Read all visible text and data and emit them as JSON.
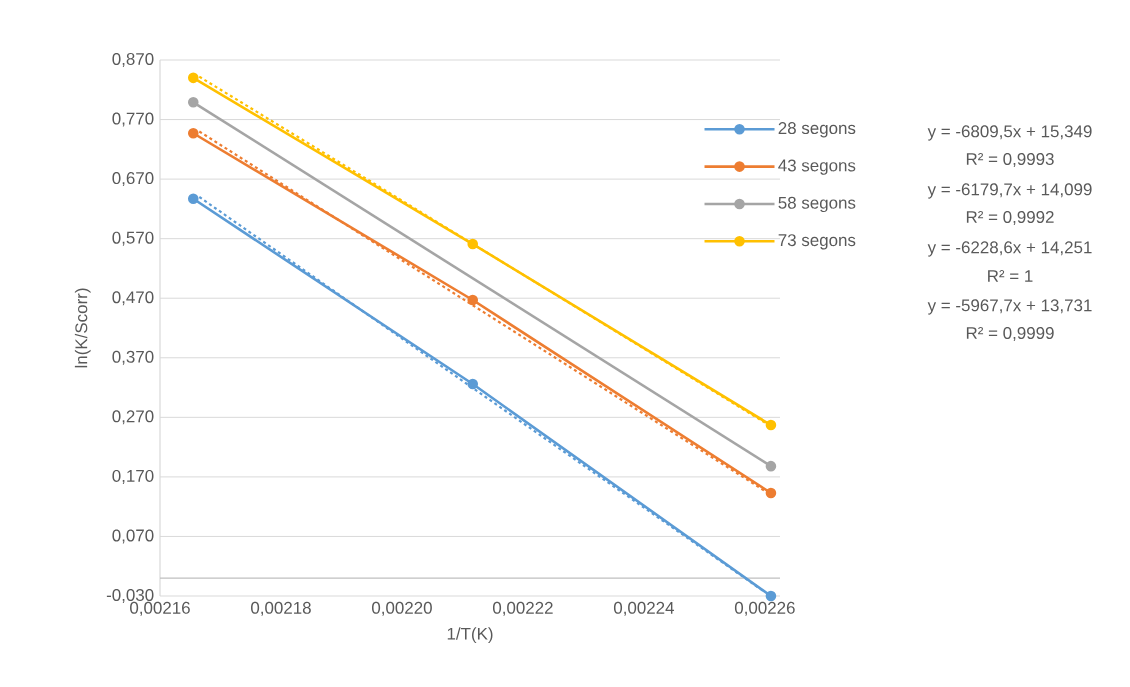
{
  "chart_data": {
    "type": "line",
    "xlabel": "1/T(K)",
    "ylabel": "ln(K/Scorr)",
    "x": [
      0.0021655,
      0.0022117,
      0.002261
    ],
    "series": [
      {
        "type": "line",
        "color": "#5b9bd5",
        "line_style": "dotted",
        "marker": "none",
        "x": [
          0.0021665,
          0.0022598
        ],
        "values": [
          0.64,
          -0.022
        ]
      },
      {
        "type": "line",
        "color": "#ed7d31",
        "line_style": "dotted",
        "marker": "none",
        "x": [
          0.0021665,
          0.002261
        ],
        "values": [
          0.75,
          0.14
        ]
      },
      {
        "type": "line",
        "color": "#ffc000",
        "line_style": "dotted",
        "marker": "none",
        "x": [
          0.0021665,
          0.002261
        ],
        "values": [
          0.842,
          0.255
        ]
      },
      {
        "name": "28 segons",
        "color": "#5b9bd5",
        "values": [
          0.637,
          0.326,
          -0.03
        ]
      },
      {
        "name": "43 segons",
        "color": "#ed7d31",
        "values": [
          0.747,
          0.467,
          0.143
        ]
      },
      {
        "name": "58 segons",
        "color": "#a5a5a5",
        "x": [
          0.0021655,
          0.002261
        ],
        "values": [
          0.799,
          0.188
        ]
      },
      {
        "name": "73 segons",
        "color": "#ffc000",
        "values": [
          0.84,
          0.561,
          0.257
        ]
      }
    ],
    "xlim": [
      0.00216,
      0.0022625
    ],
    "xticks": [
      {
        "value": 0.00216,
        "label": "0,00216"
      },
      {
        "value": 0.00218,
        "label": "0,00218"
      },
      {
        "value": 0.0022,
        "label": "0,00220"
      },
      {
        "value": 0.00222,
        "label": "0,00222"
      },
      {
        "value": 0.00224,
        "label": "0,00224"
      },
      {
        "value": 0.00226,
        "label": "0,00226"
      }
    ],
    "ylim": [
      -0.03,
      0.87
    ],
    "yticks": [
      {
        "value": -0.03,
        "label": "-0,030"
      },
      {
        "value": 0.07,
        "label": "0,070"
      },
      {
        "value": 0.17,
        "label": "0,170"
      },
      {
        "value": 0.27,
        "label": "0,270"
      },
      {
        "value": 0.37,
        "label": "0,370"
      },
      {
        "value": 0.47,
        "label": "0,470"
      },
      {
        "value": 0.57,
        "label": "0,570"
      },
      {
        "value": 0.67,
        "label": "0,670"
      },
      {
        "value": 0.77,
        "label": "0,770"
      },
      {
        "value": 0.87,
        "label": "0,870"
      }
    ],
    "ref_lines": [
      {
        "axis": "y",
        "value": 0,
        "color": "#bfbfbf"
      }
    ],
    "grid": "y",
    "legend": "right",
    "marker": "circle",
    "line_style": "solid",
    "annotations": [
      "y = -6809,5x + 15,349",
      "R² = 0,9993",
      "y = -6179,7x + 14,099",
      "R² = 0,9992",
      "y = -6228,6x + 14,251",
      "R² = 1",
      "y = -5967,7x + 13,731",
      "R² = 0,9999"
    ]
  }
}
